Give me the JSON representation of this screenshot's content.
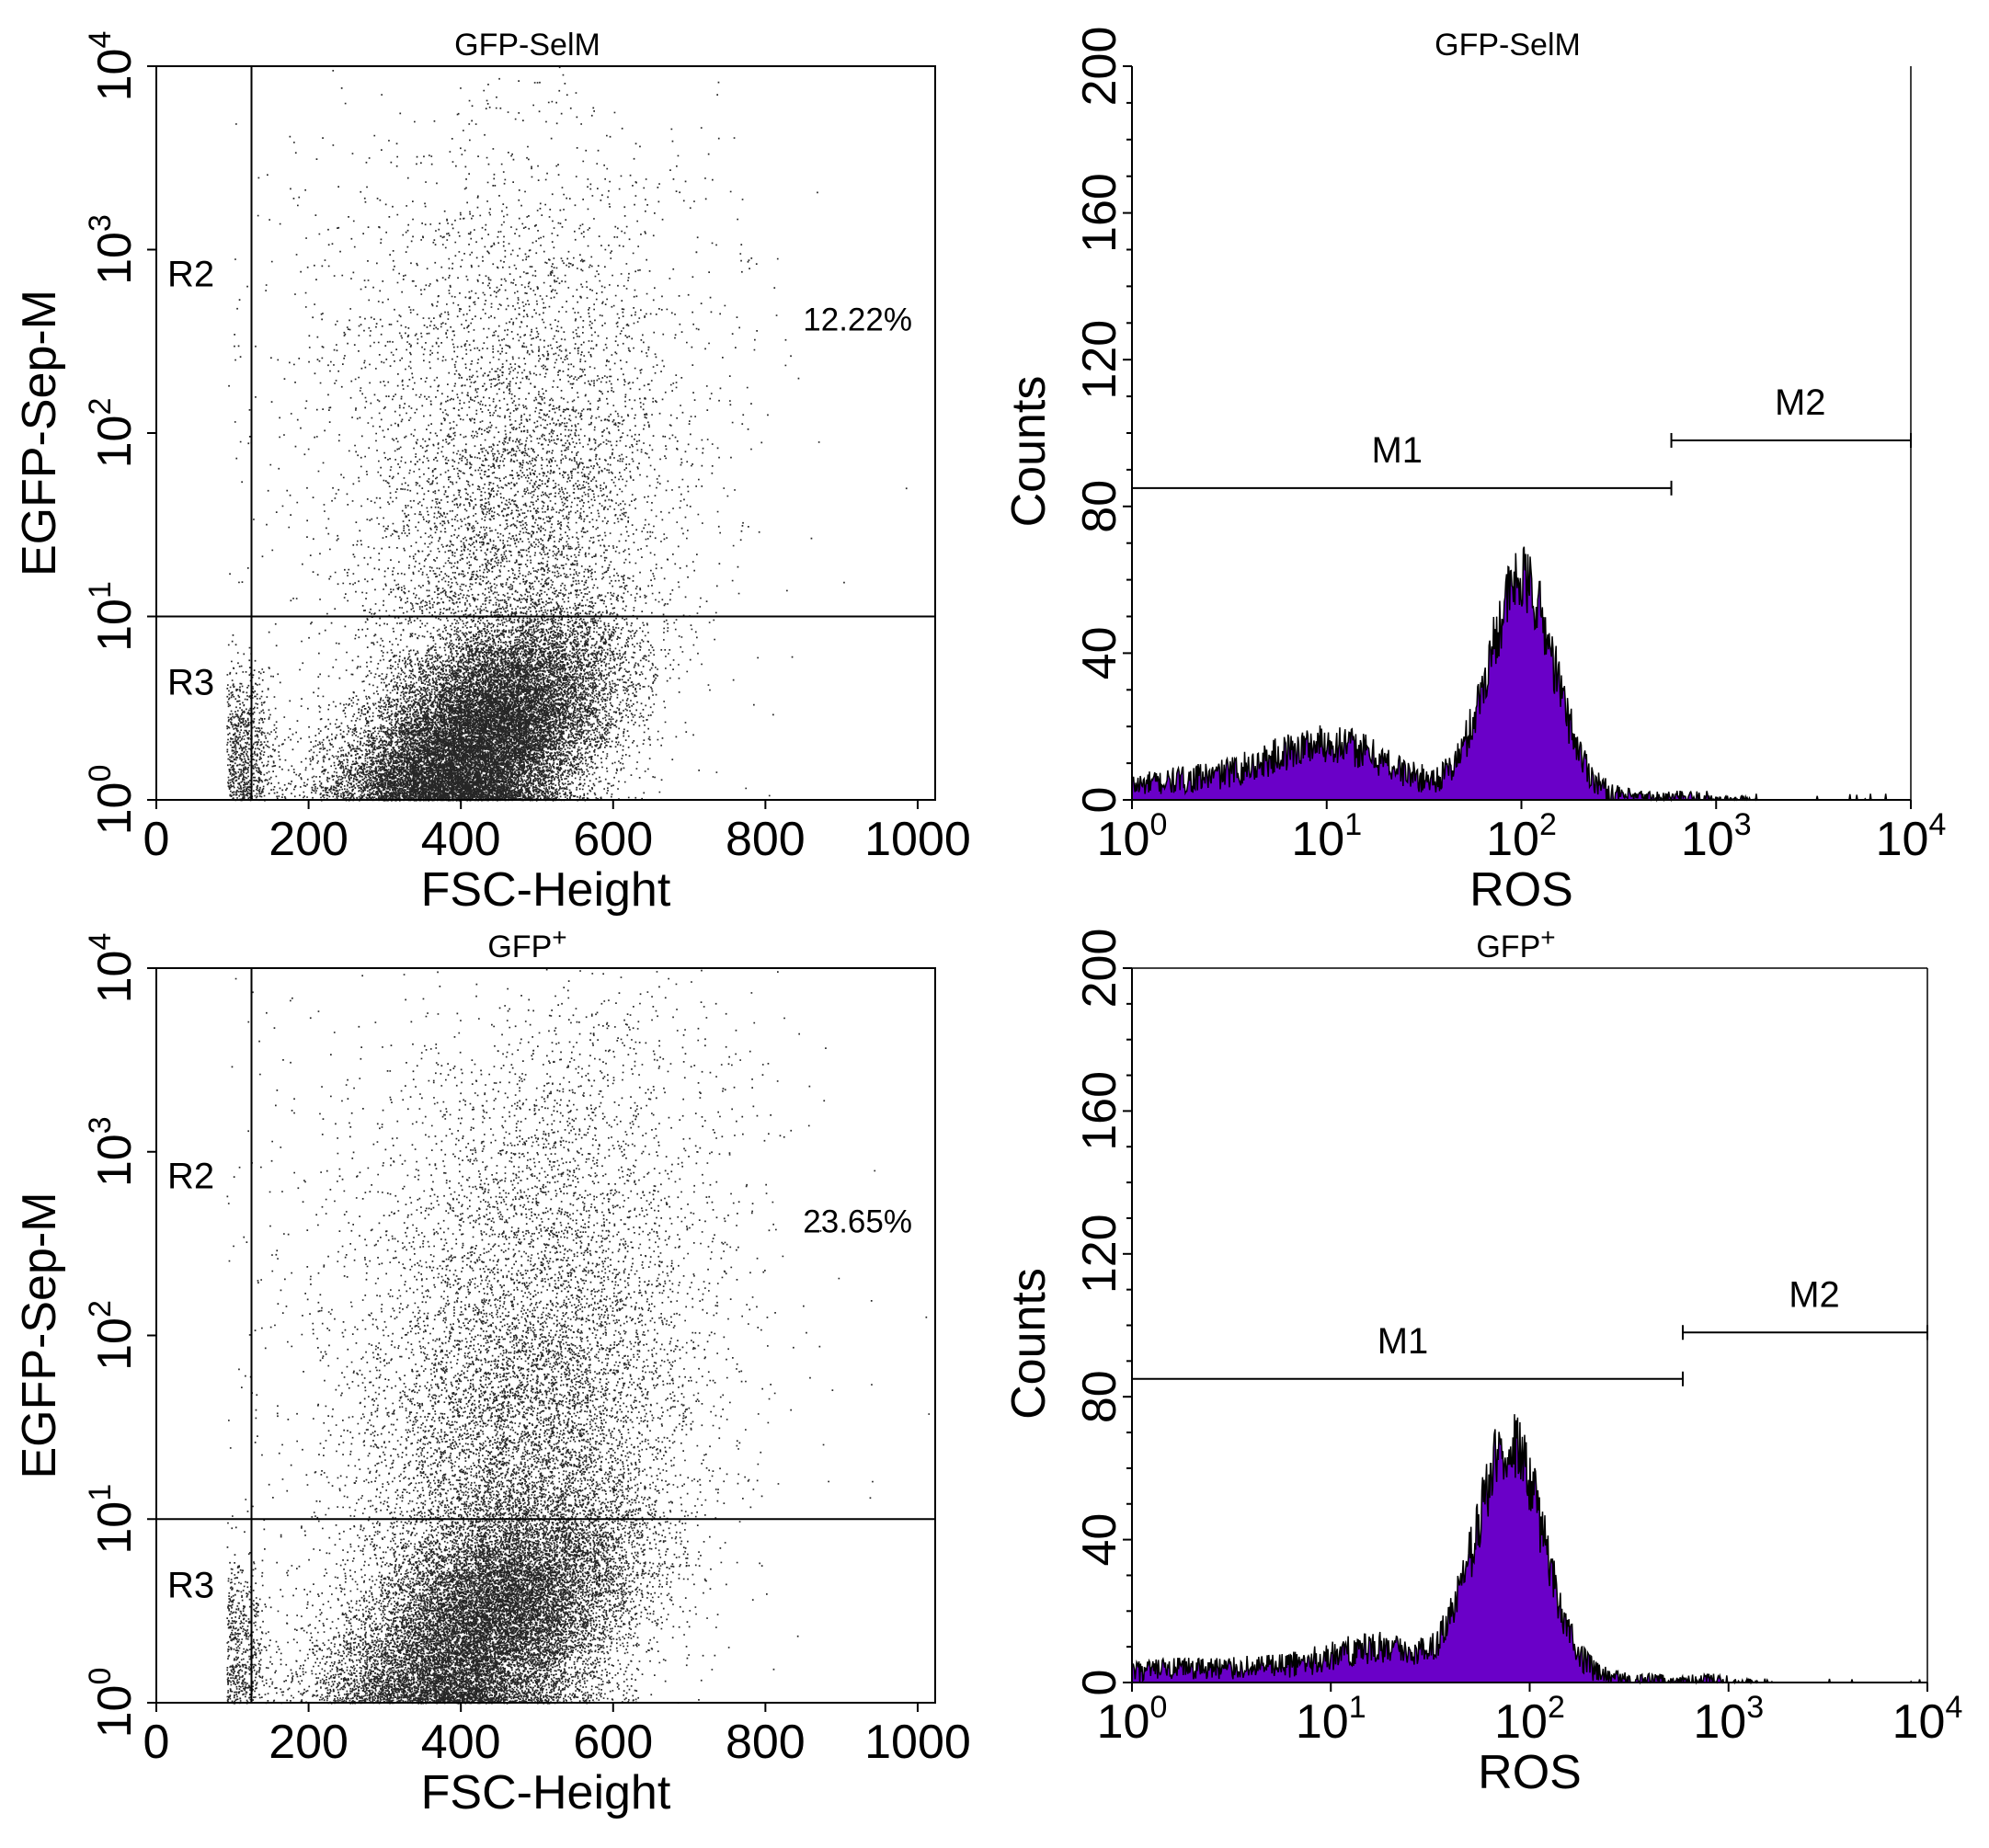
{
  "chart_data": [
    {
      "type": "scatter",
      "title": "GFP-SelM",
      "xlabel": "FSC-Height",
      "ylabel": "EGFP-Sep-M",
      "xlim": [
        0,
        1023
      ],
      "ylim_log10": [
        0,
        4
      ],
      "x_ticks": [
        "0",
        "200",
        "400",
        "600",
        "800",
        "1000"
      ],
      "y_tick_powers": [
        "0",
        "1",
        "2",
        "3",
        "4"
      ],
      "tick_base": "10",
      "gate_x": 125,
      "gate_y": 10,
      "regions": [
        "R2",
        "R3"
      ],
      "percent_label": "12.22%",
      "populations": [
        {
          "x_mean": 430,
          "x_sd": 85,
          "log10_y_mean": 0.35,
          "log10_y_sd": 0.32,
          "corr": 0.45,
          "fraction": 0.74
        },
        {
          "x_mean": 470,
          "x_sd": 105,
          "log10_y_mean": 1.5,
          "log10_y_sd": 0.55,
          "corr": 0.3,
          "fraction": 0.14
        },
        {
          "x_mean": 455,
          "x_sd": 120,
          "log10_y_mean": 2.6,
          "log10_y_sd": 0.6,
          "corr": 0.2,
          "fraction": 0.05
        },
        {
          "x_mean": 110,
          "x_sd": 22,
          "log10_y_mean": 0.25,
          "log10_y_sd": 0.22,
          "corr": 0.0,
          "fraction": 0.04
        },
        {
          "x_mean": 420,
          "x_sd": 200,
          "log10_y_mean": 2.0,
          "log10_y_sd": 1.1,
          "corr": 0.0,
          "fraction": 0.03
        }
      ]
    },
    {
      "type": "histogram",
      "title": "GFP-SelM",
      "xlabel": "ROS",
      "ylabel": "Counts",
      "xlim_log10": [
        0,
        4
      ],
      "ylim": [
        0,
        200
      ],
      "y_ticks": [
        "0",
        "40",
        "80",
        "120",
        "160",
        "200"
      ],
      "x_tick_powers": [
        "0",
        "1",
        "2",
        "3",
        "4"
      ],
      "tick_base": "10",
      "fill_color": "#6a00c8",
      "markers": [
        {
          "label": "M1",
          "from_log10": 0.0,
          "to_log10": 2.77,
          "count_level": 85
        },
        {
          "label": "M2",
          "from_log10": 2.77,
          "to_log10": 4.0,
          "count_level": 98
        }
      ],
      "peaks": [
        {
          "log10_center": 1.04,
          "log10_sd": 0.3,
          "height": 13
        },
        {
          "log10_center": 2.0,
          "log10_sd": 0.17,
          "height": 59
        },
        {
          "log10_center": 0.4,
          "log10_sd": 0.45,
          "height": 4
        }
      ]
    },
    {
      "type": "scatter",
      "title": "GFP",
      "title_superscript": "+",
      "xlabel": "FSC-Height",
      "ylabel": "EGFP-Sep-M",
      "xlim": [
        0,
        1023
      ],
      "ylim_log10": [
        0,
        4
      ],
      "x_ticks": [
        "0",
        "200",
        "400",
        "600",
        "800",
        "1000"
      ],
      "y_tick_powers": [
        "0",
        "1",
        "2",
        "3",
        "4"
      ],
      "tick_base": "10",
      "gate_x": 125,
      "gate_y": 10,
      "regions": [
        "R2",
        "R3"
      ],
      "percent_label": "23.65%",
      "populations": [
        {
          "x_mean": 440,
          "x_sd": 95,
          "log10_y_mean": 0.45,
          "log10_y_sd": 0.36,
          "corr": 0.45,
          "fraction": 0.62
        },
        {
          "x_mean": 480,
          "x_sd": 110,
          "log10_y_mean": 1.5,
          "log10_y_sd": 0.55,
          "corr": 0.3,
          "fraction": 0.22
        },
        {
          "x_mean": 500,
          "x_sd": 120,
          "log10_y_mean": 2.7,
          "log10_y_sd": 0.6,
          "corr": 0.25,
          "fraction": 0.09
        },
        {
          "x_mean": 105,
          "x_sd": 20,
          "log10_y_mean": 0.3,
          "log10_y_sd": 0.25,
          "corr": 0.0,
          "fraction": 0.03
        },
        {
          "x_mean": 430,
          "x_sd": 200,
          "log10_y_mean": 2.0,
          "log10_y_sd": 1.1,
          "corr": 0.0,
          "fraction": 0.04
        }
      ]
    },
    {
      "type": "histogram",
      "title": "GFP",
      "title_superscript": "+",
      "xlabel": "ROS",
      "ylabel": "Counts",
      "xlim_log10": [
        0,
        4
      ],
      "ylim": [
        0,
        200
      ],
      "y_ticks": [
        "0",
        "40",
        "80",
        "120",
        "160",
        "200"
      ],
      "x_tick_powers": [
        "0",
        "1",
        "2",
        "3",
        "4"
      ],
      "tick_base": "10",
      "fill_color": "#6a00c8",
      "markers": [
        {
          "label": "M1",
          "from_log10": 0.0,
          "to_log10": 2.77,
          "count_level": 85
        },
        {
          "label": "M2",
          "from_log10": 2.77,
          "to_log10": 4.0,
          "count_level": 98
        }
      ],
      "peaks": [
        {
          "log10_center": 1.25,
          "log10_sd": 0.25,
          "height": 8
        },
        {
          "log10_center": 1.9,
          "log10_sd": 0.17,
          "height": 66
        },
        {
          "log10_center": 0.5,
          "log10_sd": 0.45,
          "height": 3
        }
      ]
    }
  ]
}
